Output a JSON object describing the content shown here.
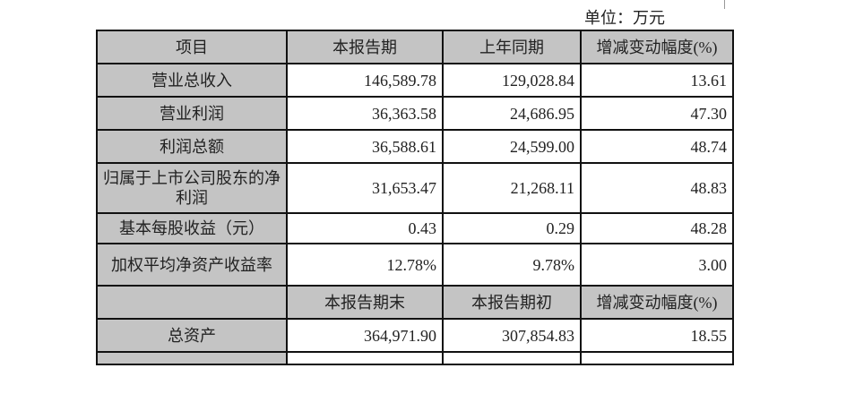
{
  "unit_label": "单位：万元",
  "header": [
    "项目",
    "本报告期",
    "上年同期",
    "增减变动幅度(%)"
  ],
  "rows": [
    {
      "item": "营业总收入",
      "current": "146,589.78",
      "prior": "129,028.84",
      "change": "13.61"
    },
    {
      "item": "营业利润",
      "current": "36,363.58",
      "prior": "24,686.95",
      "change": "47.30"
    },
    {
      "item": "利润总额",
      "current": "36,588.61",
      "prior": "24,599.00",
      "change": "48.74"
    },
    {
      "item": "归属于上市公司股东的净利润",
      "current": "31,653.47",
      "prior": "21,268.11",
      "change": "48.83"
    },
    {
      "item": "基本每股收益（元）",
      "current": "0.43",
      "prior": "0.29",
      "change": "48.28"
    },
    {
      "item": "加权平均净资产收益率",
      "current": "12.78%",
      "prior": "9.78%",
      "change": "3.00"
    }
  ],
  "header2": [
    "",
    "本报告期末",
    "本报告期初",
    "增减变动幅度(%)"
  ],
  "rows2": [
    {
      "item": "总资产",
      "current": "364,971.90",
      "prior": "307,854.83",
      "change": "18.55"
    }
  ]
}
